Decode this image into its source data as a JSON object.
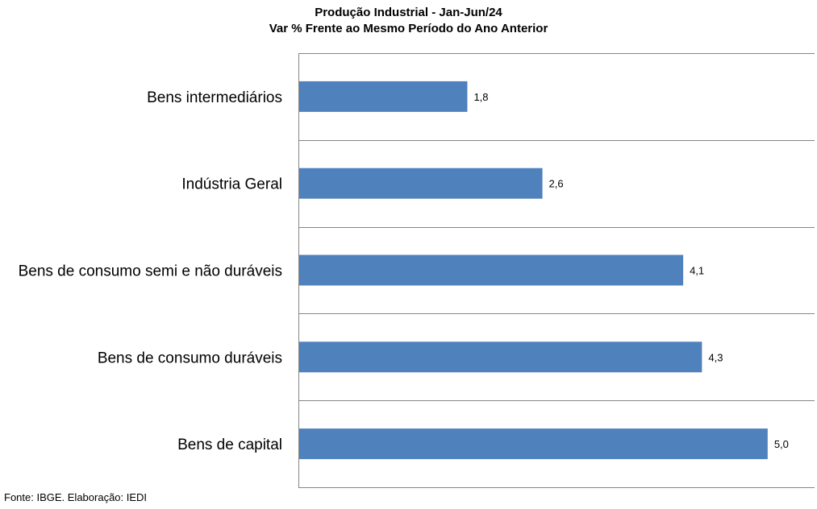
{
  "chart_data": {
    "type": "bar",
    "orientation": "horizontal",
    "title": "Produção Industrial - Jan-Jun/24",
    "subtitle": "Var % Frente ao Mesmo Período do Ano Anterior",
    "categories": [
      "Bens intermediários",
      "Indústria Geral",
      "Bens de consumo semi e não duráveis",
      "Bens de consumo duráveis",
      "Bens de capital"
    ],
    "values": [
      1.8,
      2.6,
      4.1,
      4.3,
      5.0
    ],
    "value_labels": [
      "1,8",
      "2,6",
      "4,1",
      "4,3",
      "5,0"
    ],
    "xlim": [
      0,
      5.5
    ],
    "grid": "horizontal",
    "bar_color": "#4F81BD",
    "grid_color": "#868686",
    "legend": "none"
  },
  "footer": {
    "source": "Fonte: IBGE. Elaboração: IEDI"
  }
}
